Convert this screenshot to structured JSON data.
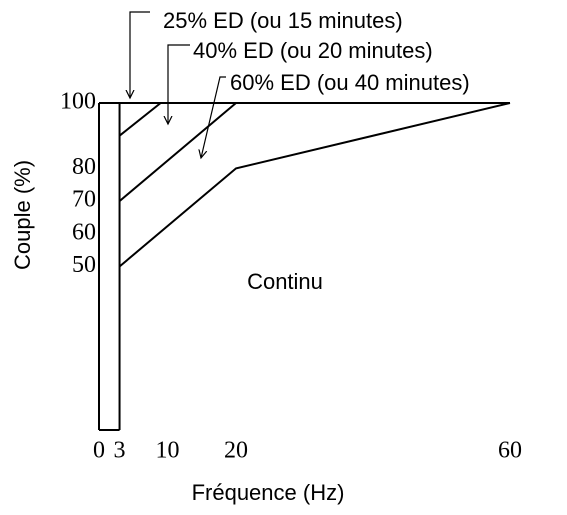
{
  "chart_data": {
    "type": "line",
    "xlabel": "Fréquence (Hz)",
    "ylabel": "Couple (%)",
    "xlim": [
      0,
      60
    ],
    "ylim": [
      0,
      100
    ],
    "xticks": [
      0,
      3,
      10,
      20,
      60
    ],
    "yticks": [
      50,
      60,
      70,
      80,
      100
    ],
    "color": "#000000",
    "series": [
      {
        "x": [
          3,
          20,
          60
        ],
        "values": [
          50,
          80,
          100
        ]
      },
      {
        "x": [
          3,
          20
        ],
        "values": [
          70,
          100
        ]
      },
      {
        "x": [
          3,
          9
        ],
        "values": [
          90,
          100
        ]
      },
      {
        "x": [
          0,
          60
        ],
        "values": [
          100,
          100
        ]
      },
      {
        "x": [
          3,
          3
        ],
        "values": [
          0,
          100
        ]
      },
      {
        "x": [
          0,
          0
        ],
        "values": [
          0,
          100
        ]
      },
      {
        "x": [
          0,
          3
        ],
        "values": [
          0,
          0
        ]
      }
    ],
    "annotations": [
      "25% ED (ou 15 minutes)",
      "40% ED (ou 20 minutes)",
      "60% ED (ou 40 minutes)",
      "Continu"
    ]
  }
}
